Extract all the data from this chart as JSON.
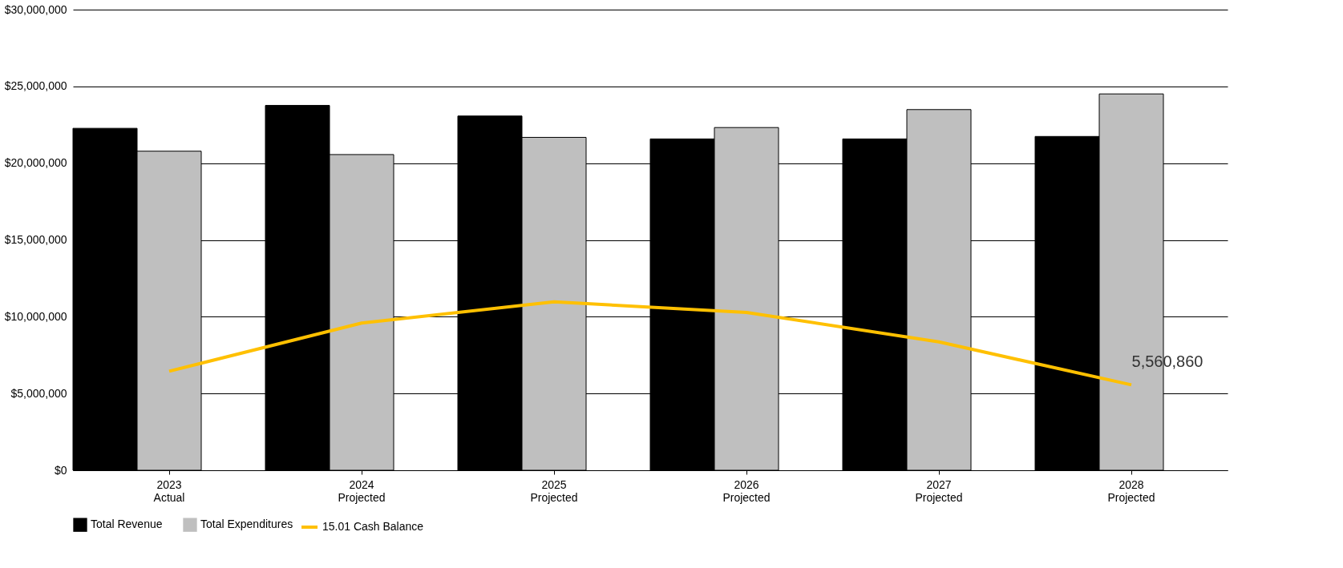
{
  "chart_data": {
    "type": "bar",
    "categories": [
      "2023\nActual",
      "2024\nProjected",
      "2025\nProjected",
      "2026\nProjected",
      "2027\nProjected",
      "2028\nProjected"
    ],
    "series": [
      {
        "name": "Total Revenue",
        "color": "#000000",
        "values": [
          22270000,
          23760000,
          23070000,
          21580000,
          21580000,
          21740000
        ]
      },
      {
        "name": "Total Expenditures",
        "color": "#bfbfbf",
        "values": [
          20780000,
          20560000,
          21680000,
          22320000,
          23490000,
          24510000
        ]
      },
      {
        "name": "15.01 Cash Balance",
        "type": "line",
        "color": "#ffc000",
        "values": [
          6450000,
          9590000,
          10970000,
          10280000,
          8360000,
          5560860
        ]
      }
    ],
    "ylim": [
      0,
      30000000
    ],
    "yticks": [
      {
        "value": 0,
        "label": "$0"
      },
      {
        "value": 5000000,
        "label": "$5,000,000"
      },
      {
        "value": 10000000,
        "label": "$10,000,000"
      },
      {
        "value": 15000000,
        "label": "$15,000,000"
      },
      {
        "value": 20000000,
        "label": "$20,000,000"
      },
      {
        "value": 25000000,
        "label": "$25,000,000"
      },
      {
        "value": 30000000,
        "label": "$30,000,000"
      }
    ],
    "grid": "y",
    "legend": "bottom",
    "annotations": [
      {
        "text": "5,560,860",
        "x": "2028\nProjected",
        "y": 5560860
      }
    ]
  }
}
